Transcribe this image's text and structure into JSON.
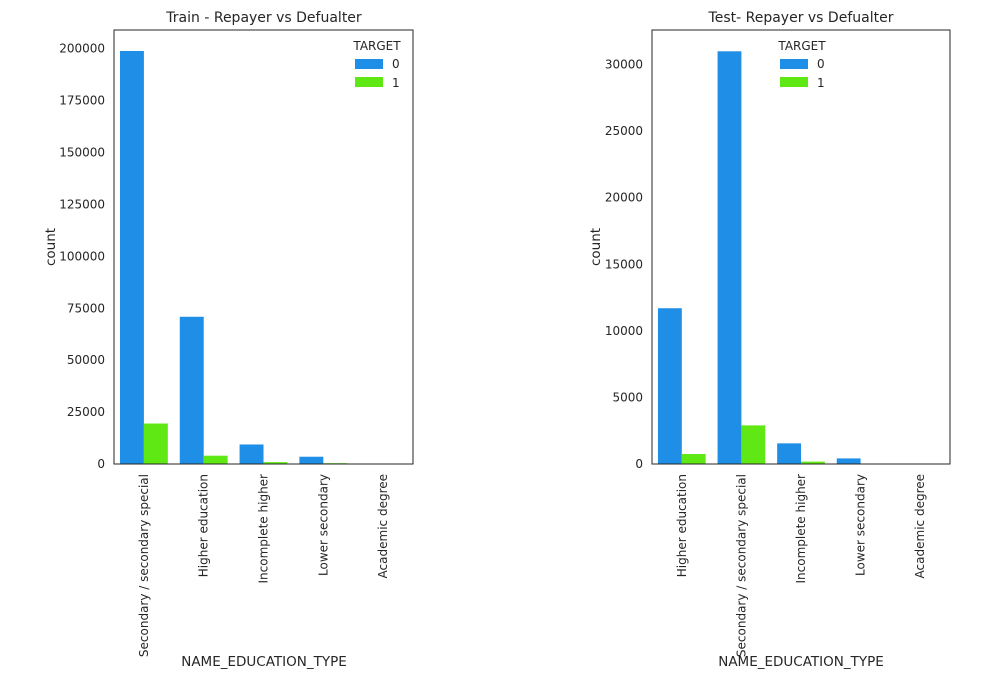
{
  "chart_data": [
    {
      "type": "bar",
      "title": "Train - Repayer vs Defualter",
      "xlabel": "NAME_EDUCATION_TYPE",
      "ylabel": "count",
      "ylim": [
        0,
        209000
      ],
      "yticks": [
        0,
        25000,
        50000,
        75000,
        100000,
        125000,
        150000,
        175000,
        200000
      ],
      "categories": [
        "Secondary / secondary special",
        "Higher education",
        "Incomplete higher",
        "Lower secondary",
        "Academic degree"
      ],
      "legend_title": "TARGET",
      "legend_position": "top-right",
      "grid": false,
      "series": [
        {
          "name": "0",
          "color": "#1e8ee6",
          "values": [
            198900,
            70900,
            9400,
            3500,
            150
          ]
        },
        {
          "name": "1",
          "color": "#60e815",
          "values": [
            19500,
            4000,
            900,
            400,
            5
          ]
        }
      ]
    },
    {
      "type": "bar",
      "title": "Test- Repayer vs Defualter",
      "xlabel": "NAME_EDUCATION_TYPE",
      "ylabel": "count",
      "ylim": [
        0,
        32600
      ],
      "yticks": [
        0,
        5000,
        10000,
        15000,
        20000,
        25000,
        30000
      ],
      "categories": [
        "Higher education",
        "Secondary / secondary special",
        "Incomplete higher",
        "Lower secondary",
        "Academic degree"
      ],
      "legend_title": "TARGET",
      "legend_position": "top-center",
      "grid": false,
      "series": [
        {
          "name": "0",
          "color": "#1e8ee6",
          "values": [
            11700,
            31000,
            1550,
            420,
            25
          ]
        },
        {
          "name": "1",
          "color": "#60e815",
          "values": [
            750,
            2900,
            180,
            30,
            2
          ]
        }
      ]
    }
  ]
}
